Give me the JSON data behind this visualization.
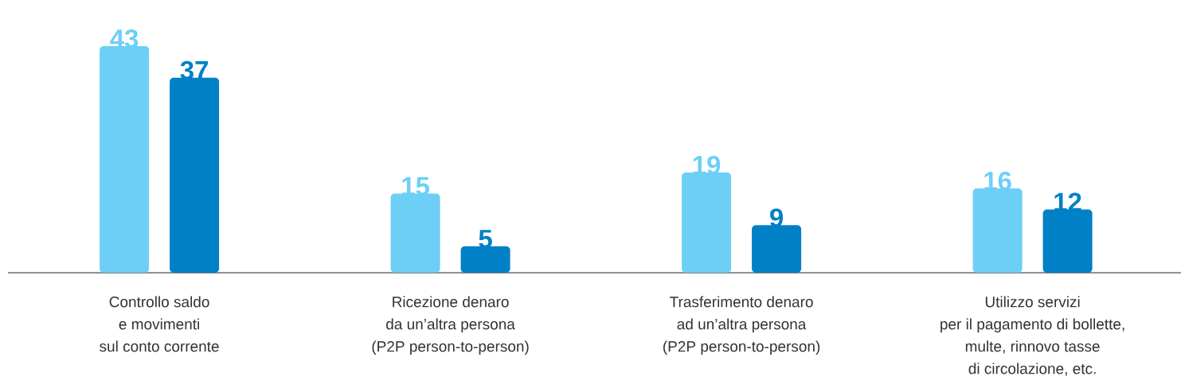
{
  "chart_data": {
    "type": "bar",
    "categories": [
      "Controllo saldo\ne movimenti\nsul conto corrente",
      "Ricezione denaro\nda un’altra persona\n(P2P person-to-person)",
      "Trasferimento denaro\nad un’altra persona\n(P2P person-to-person)",
      "Utilizzo servizi\nper il pagamento di bollette,\nmulte, rinnovo tasse\ndi circolazione, etc."
    ],
    "series": [
      {
        "color": "#6dcff6",
        "values": [
          43,
          15,
          19,
          16
        ]
      },
      {
        "color": "#0080c6",
        "values": [
          37,
          5,
          9,
          12
        ]
      }
    ],
    "data_labels": true
  }
}
